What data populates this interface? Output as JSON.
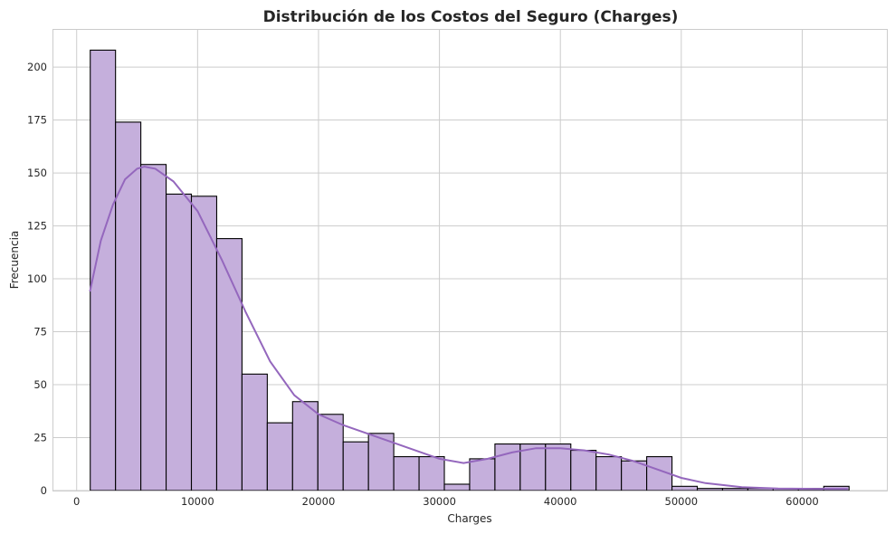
{
  "chart_data": {
    "type": "histogram",
    "title": "Distribución de los Costos del Seguro (Charges)",
    "xlabel": "Charges",
    "ylabel": "Frecuencia",
    "xlim": [
      -2000,
      67000
    ],
    "ylim": [
      0,
      218
    ],
    "xticks": [
      0,
      10000,
      20000,
      30000,
      40000,
      50000,
      60000
    ],
    "xtick_labels": [
      "0",
      "10000",
      "20000",
      "30000",
      "40000",
      "50000",
      "60000"
    ],
    "yticks": [
      0,
      25,
      50,
      75,
      100,
      125,
      150,
      175,
      200
    ],
    "ytick_labels": [
      "0",
      "25",
      "50",
      "75",
      "100",
      "125",
      "150",
      "175",
      "200"
    ],
    "grid": true,
    "bin_start": 1121.87,
    "bin_width": 2091.7,
    "counts": [
      208,
      174,
      154,
      140,
      139,
      119,
      55,
      32,
      42,
      36,
      23,
      27,
      16,
      16,
      3,
      15,
      22,
      22,
      22,
      19,
      16,
      14,
      16,
      2,
      1,
      1,
      1,
      1,
      1,
      2
    ],
    "kde": {
      "name": "KDE",
      "x": [
        1100,
        2000,
        3000,
        4000,
        5000,
        5600,
        6500,
        8000,
        10000,
        12000,
        14000,
        16000,
        18000,
        20000,
        22000,
        24000,
        26000,
        28000,
        30000,
        32000,
        34000,
        36000,
        38000,
        40000,
        42000,
        44000,
        46000,
        48000,
        50000,
        52000,
        55000,
        58000,
        61000,
        63770
      ],
      "y": [
        94,
        118,
        135,
        147,
        152,
        153,
        152,
        146,
        132,
        109,
        84,
        61,
        45,
        36,
        31,
        27,
        23,
        19,
        15,
        13,
        15,
        18,
        20,
        20,
        19,
        17,
        14,
        10,
        6,
        3.5,
        1.6,
        1,
        0.8,
        0.8
      ]
    },
    "colors": {
      "bar_fill": "#c5afdc",
      "bar_edge": "#000000",
      "kde_line": "#9467bd",
      "grid": "#cccccc"
    }
  }
}
